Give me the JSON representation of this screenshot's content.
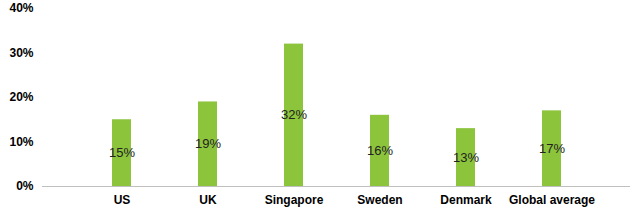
{
  "chart_data": {
    "type": "bar",
    "categories": [
      "US",
      "UK",
      "Singapore",
      "Sweden",
      "Denmark",
      "Global average"
    ],
    "values": [
      15,
      19,
      32,
      16,
      13,
      17
    ],
    "value_labels": [
      "15%",
      "19%",
      "32%",
      "16%",
      "13%",
      "17%"
    ],
    "data_labels": true,
    "color": "#8cc43c",
    "ylim": [
      0,
      40
    ],
    "yticks": [
      {
        "value": 0,
        "label": "0%"
      },
      {
        "value": 10,
        "label": "10%"
      },
      {
        "value": 20,
        "label": "20%"
      },
      {
        "value": 30,
        "label": "30%"
      },
      {
        "value": 40,
        "label": "40%"
      }
    ],
    "grid": false
  }
}
